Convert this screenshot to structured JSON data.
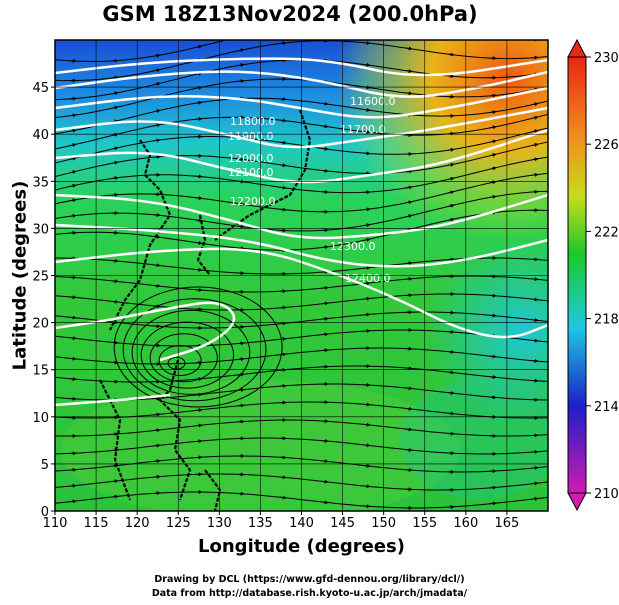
{
  "title": "GSM 18Z13Nov2024 (200.0hPa)",
  "xlabel": "Longitude (degrees)",
  "ylabel": "Latitude (degrees)",
  "credit_line1": "Drawing by DCL (https://www.gfd-dennou.org/library/dcl/)",
  "credit_line2": "Data from http://database.rish.kyoto-u.ac.jp/arch/jmadata/",
  "map_data": {
    "extent": {
      "lon": [
        110,
        170
      ],
      "lat": [
        0,
        50
      ]
    },
    "x_ticks": [
      110,
      115,
      120,
      125,
      130,
      135,
      140,
      145,
      150,
      155,
      160,
      165
    ],
    "y_ticks": [
      0,
      5,
      10,
      15,
      20,
      25,
      30,
      35,
      40,
      45
    ],
    "colorbar": {
      "ticks": [
        230,
        226,
        222,
        218,
        214,
        210
      ],
      "range": [
        210,
        230
      ],
      "colors": [
        "#d21bb0",
        "#1b20c8",
        "#1ec8e0",
        "#1ec828",
        "#c8dc1e",
        "#f08c1e",
        "#e62814"
      ]
    },
    "contour_labels": [
      "11600.0",
      "11700.0",
      "11800.0",
      "11900.0",
      "12000.0",
      "12100.0",
      "12200.0",
      "12300.0",
      "12400.0"
    ],
    "grid": true
  }
}
